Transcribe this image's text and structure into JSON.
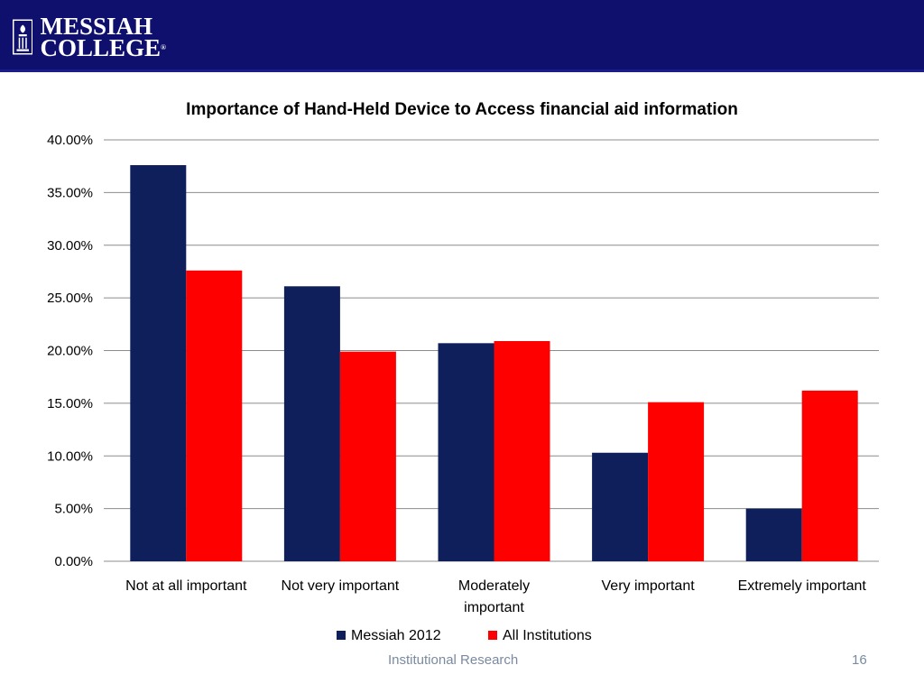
{
  "header": {
    "logo_line1": "MESSIAH",
    "logo_line2": "COLLEGE",
    "logo_mark": "®",
    "background_color": "#0f0f6e"
  },
  "footer": {
    "text": "Institutional Research",
    "page_number": "16"
  },
  "chart_data": {
    "type": "bar",
    "title": "Importance of Hand-Held Device to Access financial aid information",
    "xlabel": "",
    "ylabel": "",
    "categories": [
      [
        "Not at all important"
      ],
      [
        "Not very important"
      ],
      [
        "Moderately",
        "important"
      ],
      [
        "Very important"
      ],
      [
        "Extremely important"
      ]
    ],
    "series": [
      {
        "name": "Messiah 2012",
        "color": "#0e1f5b",
        "values": [
          37.6,
          26.1,
          20.7,
          10.3,
          5.0
        ]
      },
      {
        "name": "All Institutions",
        "color": "#ff0000",
        "values": [
          27.6,
          19.9,
          20.9,
          15.1,
          16.2
        ]
      }
    ],
    "ylim": [
      0,
      40
    ],
    "yticks": [
      "0.00%",
      "5.00%",
      "10.00%",
      "15.00%",
      "20.00%",
      "25.00%",
      "30.00%",
      "35.00%",
      "40.00%"
    ],
    "grid": true,
    "legend_position": "bottom"
  }
}
